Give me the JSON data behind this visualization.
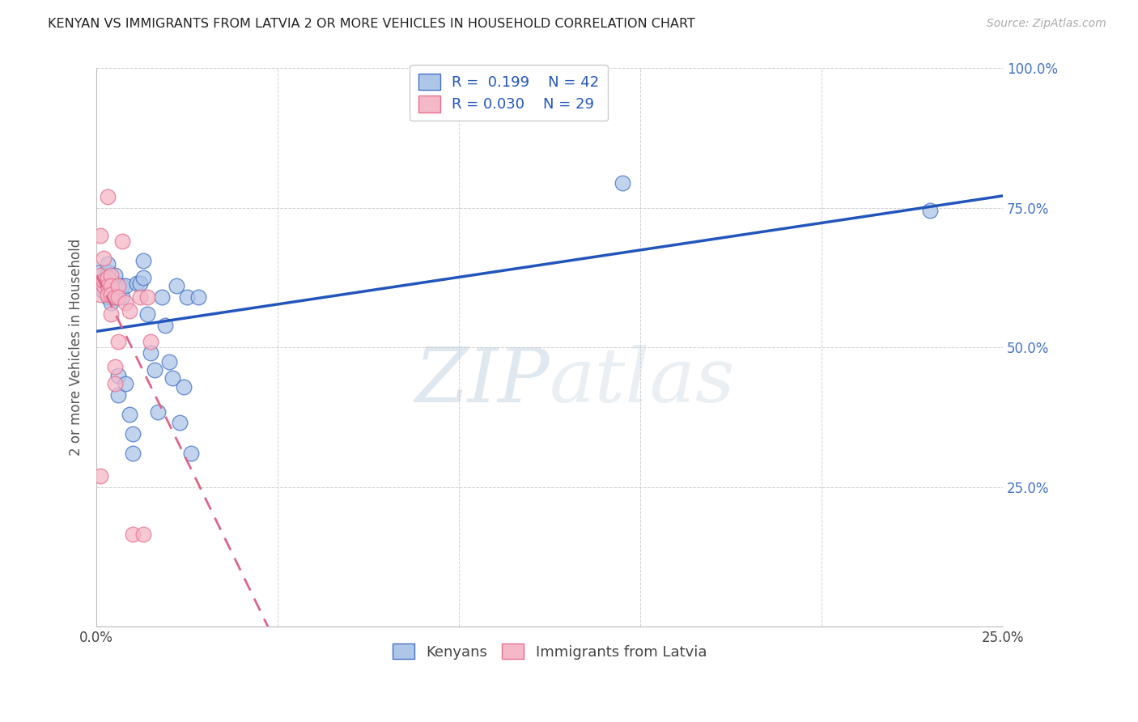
{
  "title": "KENYAN VS IMMIGRANTS FROM LATVIA 2 OR MORE VEHICLES IN HOUSEHOLD CORRELATION CHART",
  "source": "Source: ZipAtlas.com",
  "ylabel": "2 or more Vehicles in Household",
  "watermark": "ZIPatlas",
  "legend_r_kenyan": "0.199",
  "legend_n_kenyan": "42",
  "legend_r_latvia": "0.030",
  "legend_n_latvia": "29",
  "xmin": 0.0,
  "xmax": 0.25,
  "ymin": 0.0,
  "ymax": 1.0,
  "x_ticks": [
    0.0,
    0.05,
    0.1,
    0.15,
    0.2,
    0.25
  ],
  "x_tick_labels": [
    "0.0%",
    "",
    "",
    "",
    "",
    "25.0%"
  ],
  "y_ticks_right": [
    0.25,
    0.5,
    0.75,
    1.0
  ],
  "y_tick_labels_right": [
    "25.0%",
    "50.0%",
    "75.0%",
    "100.0%"
  ],
  "kenyan_color": "#aec6e8",
  "latvia_color": "#f4b8c8",
  "kenyan_edge_color": "#4472c4",
  "latvia_edge_color": "#e87090",
  "kenyan_line_color": "#2255bb",
  "latvia_line_color": "#dd6688",
  "right_axis_color": "#4472c4",
  "background_color": "#ffffff",
  "grid_color": "#d0d0d0",
  "kenyan_x": [
    0.001,
    0.001,
    0.002,
    0.003,
    0.003,
    0.003,
    0.003,
    0.004,
    0.004,
    0.004,
    0.005,
    0.005,
    0.005,
    0.006,
    0.006,
    0.007,
    0.007,
    0.008,
    0.008,
    0.009,
    0.01,
    0.01,
    0.011,
    0.012,
    0.013,
    0.013,
    0.014,
    0.015,
    0.016,
    0.017,
    0.018,
    0.019,
    0.02,
    0.021,
    0.022,
    0.023,
    0.024,
    0.025,
    0.026,
    0.028,
    0.145,
    0.23
  ],
  "kenyan_y": [
    0.615,
    0.635,
    0.6,
    0.59,
    0.62,
    0.635,
    0.65,
    0.58,
    0.6,
    0.62,
    0.59,
    0.615,
    0.63,
    0.415,
    0.45,
    0.59,
    0.61,
    0.61,
    0.435,
    0.38,
    0.31,
    0.345,
    0.615,
    0.615,
    0.625,
    0.655,
    0.56,
    0.49,
    0.46,
    0.385,
    0.59,
    0.54,
    0.475,
    0.445,
    0.61,
    0.365,
    0.43,
    0.59,
    0.31,
    0.59,
    0.795,
    0.745
  ],
  "latvia_x": [
    0.001,
    0.001,
    0.001,
    0.001,
    0.002,
    0.002,
    0.002,
    0.003,
    0.003,
    0.003,
    0.003,
    0.004,
    0.004,
    0.004,
    0.004,
    0.005,
    0.005,
    0.005,
    0.006,
    0.006,
    0.006,
    0.007,
    0.008,
    0.009,
    0.01,
    0.012,
    0.013,
    0.014,
    0.015
  ],
  "latvia_y": [
    0.7,
    0.63,
    0.595,
    0.27,
    0.61,
    0.62,
    0.66,
    0.77,
    0.625,
    0.61,
    0.595,
    0.63,
    0.61,
    0.595,
    0.56,
    0.465,
    0.435,
    0.59,
    0.61,
    0.59,
    0.51,
    0.69,
    0.58,
    0.565,
    0.165,
    0.59,
    0.165,
    0.59,
    0.51
  ]
}
